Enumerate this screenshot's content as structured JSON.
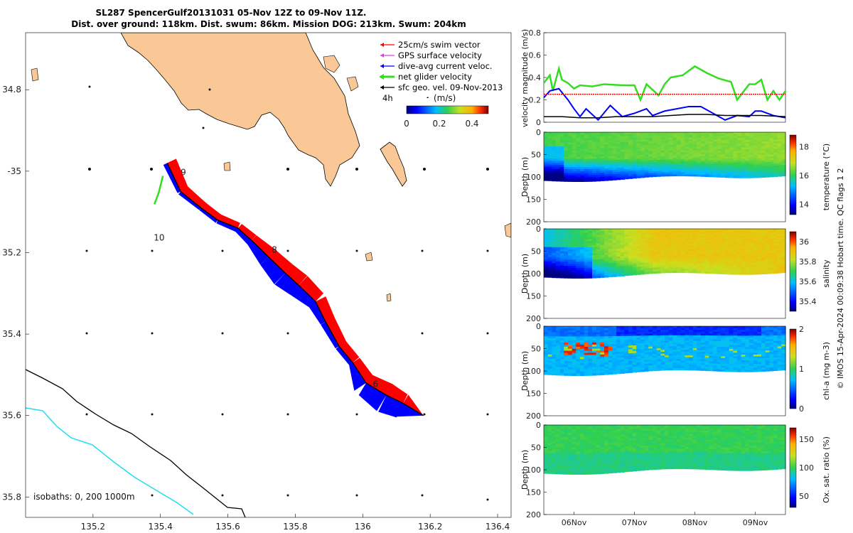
{
  "title": {
    "line1": "SL287 SpencerGulf20131031 05-Nov 12Z to 09-Nov 11Z.",
    "line2": "Dist. over ground: 118km. Dist. swum: 86km. Mission DOG: 213km. Swum: 204km"
  },
  "colors": {
    "land": "#F9C896",
    "swim": "#FF0000",
    "gps": "#E040E0",
    "dive": "#0000FF",
    "net": "#33DD22",
    "sfc": "#000000",
    "iso200": "#000000",
    "iso1000": "#22DDEE"
  },
  "chart_data": [
    {
      "type": "map",
      "name": "glider track map",
      "xlabel": "",
      "ylabel": "",
      "xlim": [
        135.0,
        136.44
      ],
      "ylim": [
        -35.85,
        -34.66
      ],
      "x_ticks": [
        135.2,
        135.4,
        135.6,
        135.8,
        136.0,
        136.2,
        136.4
      ],
      "x_tick_labels": [
        "135.2",
        "135.4",
        "135.6",
        "135.8",
        "136",
        "136.2",
        "136.4"
      ],
      "y_ticks": [
        -34.8,
        -35.0,
        -35.2,
        -35.4,
        -35.6,
        -35.8
      ],
      "y_tick_labels": [
        "34.8",
        "-35",
        "35.2",
        "35.4",
        "35.6",
        "35.8"
      ],
      "legend": {
        "items": [
          {
            "label": "25cm/s swim vector",
            "color_key": "swim"
          },
          {
            "label": "GPS surface velocity",
            "color_key": "gps"
          },
          {
            "label": "dive-avg current veloc.",
            "color_key": "dive"
          },
          {
            "label": "net glider velocity",
            "color_key": "net"
          },
          {
            "label": "sfc geo. vel. 09-Nov-2013",
            "color_key": "sfc"
          }
        ],
        "placement": "top-right"
      },
      "time_step_label": "4h",
      "colorbar": {
        "label": "(m/s)",
        "range": [
          0,
          0.5
        ],
        "ticks": [
          0,
          0.2,
          0.4
        ],
        "tick_labels": [
          "0",
          "0.2",
          "0.4"
        ]
      },
      "track": [
        [
          135.42,
          -34.98
        ],
        [
          135.46,
          -35.05
        ],
        [
          135.52,
          -35.09
        ],
        [
          135.57,
          -35.12
        ],
        [
          135.63,
          -35.14
        ],
        [
          135.67,
          -35.17
        ],
        [
          135.72,
          -35.21
        ],
        [
          135.77,
          -35.25
        ],
        [
          135.81,
          -35.28
        ],
        [
          135.86,
          -35.32
        ],
        [
          135.89,
          -35.37
        ],
        [
          135.93,
          -35.43
        ],
        [
          135.97,
          -35.47
        ],
        [
          136.01,
          -35.52
        ],
        [
          136.07,
          -35.55
        ],
        [
          136.12,
          -35.57
        ],
        [
          136.18,
          -35.6
        ]
      ],
      "day_labels": [
        {
          "text": "9",
          "lon": 135.46,
          "lat": -35.01
        },
        {
          "text": "10",
          "lon": 135.38,
          "lat": -35.17
        },
        {
          "text": "8",
          "lon": 135.73,
          "lat": -35.2
        },
        {
          "text": "6",
          "lon": 136.03,
          "lat": -35.53
        }
      ],
      "isobath_label": "isobaths: 0, 200  1000m"
    },
    {
      "type": "line",
      "name": "velocity magnitude",
      "ylabel": "velocity magnitude (m/s)",
      "ylim": [
        0,
        0.8
      ],
      "y_ticks": [
        0,
        0.2,
        0.4,
        0.6,
        0.8
      ],
      "y_tick_labels": [
        "0",
        "0.2",
        "0.4",
        "0.6",
        "0.8"
      ],
      "x_domain_days": [
        5.5,
        9.5
      ],
      "series": [
        {
          "name": "net glider velocity",
          "color_key": "net",
          "t": [
            5.5,
            5.6,
            5.65,
            5.75,
            5.8,
            5.9,
            6.0,
            6.1,
            6.3,
            6.5,
            6.8,
            7.0,
            7.1,
            7.2,
            7.4,
            7.5,
            7.6,
            7.8,
            8.0,
            8.2,
            8.4,
            8.6,
            8.7,
            8.9,
            9.0,
            9.1,
            9.2,
            9.3,
            9.4,
            9.5
          ],
          "v": [
            0.35,
            0.42,
            0.28,
            0.48,
            0.38,
            0.35,
            0.3,
            0.33,
            0.32,
            0.34,
            0.33,
            0.33,
            0.2,
            0.34,
            0.24,
            0.34,
            0.4,
            0.42,
            0.5,
            0.44,
            0.39,
            0.36,
            0.2,
            0.34,
            0.34,
            0.38,
            0.2,
            0.28,
            0.2,
            0.28
          ]
        },
        {
          "name": "dive-avg current veloc.",
          "color_key": "dive",
          "t": [
            5.5,
            5.6,
            5.75,
            5.9,
            6.0,
            6.1,
            6.2,
            6.4,
            6.6,
            6.8,
            7.0,
            7.2,
            7.3,
            7.5,
            7.7,
            7.9,
            8.1,
            8.3,
            8.5,
            8.7,
            8.9,
            9.0,
            9.1,
            9.3,
            9.5
          ],
          "v": [
            0.22,
            0.28,
            0.3,
            0.2,
            0.12,
            0.05,
            0.12,
            0.02,
            0.15,
            0.05,
            0.08,
            0.12,
            0.06,
            0.1,
            0.12,
            0.14,
            0.14,
            0.08,
            0.02,
            0.06,
            0.05,
            0.1,
            0.1,
            0.06,
            0.04
          ]
        },
        {
          "name": "swim vector",
          "color_key": "swim",
          "t": [
            5.5,
            9.5
          ],
          "v": [
            0.25,
            0.25
          ]
        },
        {
          "name": "sfc geo. vel.",
          "color_key": "sfc",
          "t": [
            5.5,
            5.8,
            6.1,
            6.4,
            6.7,
            7.0,
            7.3,
            7.6,
            7.9,
            8.2,
            8.5,
            8.8,
            9.1,
            9.5
          ],
          "v": [
            0.05,
            0.05,
            0.04,
            0.04,
            0.05,
            0.05,
            0.05,
            0.06,
            0.07,
            0.07,
            0.06,
            0.06,
            0.06,
            0.05
          ]
        }
      ]
    },
    {
      "type": "heatmap",
      "name": "temperature section",
      "ylabel": "Depth (m)",
      "y_ticks": [
        0,
        50,
        100,
        150,
        200
      ],
      "y_tick_labels": [
        "0",
        "50",
        "100",
        "150",
        "200"
      ],
      "colorbar_label": "temperature (°C)",
      "colorbar_range": [
        13.3,
        18.8
      ],
      "colorbar_ticks": [
        14,
        16,
        18
      ],
      "colorbar_tick_labels": [
        "14",
        "16",
        "18"
      ]
    },
    {
      "type": "heatmap",
      "name": "salinity section",
      "ylabel": "Depth (m)",
      "y_ticks": [
        0,
        50,
        100,
        150,
        200
      ],
      "y_tick_labels": [
        "0",
        "50",
        "100",
        "150",
        "200"
      ],
      "colorbar_label": "salinity",
      "colorbar_range": [
        35.3,
        36.1
      ],
      "colorbar_ticks": [
        35.4,
        35.6,
        35.8,
        36
      ],
      "colorbar_tick_labels": [
        "35.4",
        "35.6",
        "35.8",
        "36"
      ]
    },
    {
      "type": "heatmap",
      "name": "chlorophyll section",
      "ylabel": "Depth (m)",
      "y_ticks": [
        0,
        50,
        100,
        150,
        200
      ],
      "y_tick_labels": [
        "0",
        "50",
        "100",
        "150",
        "200"
      ],
      "colorbar_label": "chl-a (mg m-3)",
      "colorbar_range": [
        0,
        2
      ],
      "colorbar_ticks": [
        0,
        1,
        2
      ],
      "colorbar_tick_labels": [
        "0",
        "1",
        "2"
      ]
    },
    {
      "type": "heatmap",
      "name": "oxygen saturation section",
      "ylabel": "Depth (m)",
      "y_ticks": [
        0,
        50,
        100,
        150,
        200
      ],
      "y_tick_labels": [
        "0",
        "50",
        "100",
        "150",
        "200"
      ],
      "colorbar_label": "Ox. sat. ratio (%)",
      "colorbar_range": [
        30,
        170
      ],
      "colorbar_ticks": [
        50,
        100,
        150
      ],
      "colorbar_tick_labels": [
        "50",
        "100",
        "150"
      ],
      "x_ticks_days": [
        6,
        7,
        8,
        9
      ],
      "x_tick_labels": [
        "06Nov",
        "07Nov",
        "08Nov",
        "09Nov"
      ]
    }
  ],
  "side_note": "© IMOS 15-Apr-2024 00:09:38 Hobart time. QC flags 1  2"
}
